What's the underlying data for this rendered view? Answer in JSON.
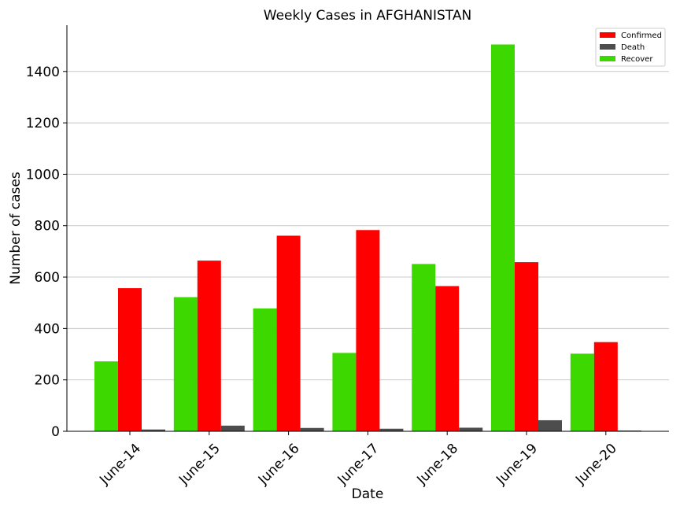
{
  "chart_data": {
    "type": "bar",
    "title": "Weekly Cases in AFGHANISTAN",
    "xlabel": "Date",
    "ylabel": "Number of cases",
    "categories": [
      "June-14",
      "June-15",
      "June-16",
      "June-17",
      "June-18",
      "June-19",
      "June-20"
    ],
    "series": [
      {
        "name": "Recover",
        "color": "#3dd800",
        "values": [
          272,
          522,
          478,
          305,
          651,
          1505,
          302
        ]
      },
      {
        "name": "Confirmed",
        "color": "#ff0000",
        "values": [
          557,
          664,
          761,
          783,
          565,
          658,
          347
        ]
      },
      {
        "name": "Death",
        "color": "#4d4d4d",
        "values": [
          7,
          22,
          13,
          10,
          14,
          43,
          3
        ]
      }
    ],
    "legend_order": [
      "Confirmed",
      "Death",
      "Recover"
    ],
    "ylim": [
      0,
      1580
    ],
    "yticks": [
      0,
      200,
      400,
      600,
      800,
      1000,
      1200,
      1400
    ],
    "grid": "horizontal",
    "legend_position": "top-right"
  }
}
